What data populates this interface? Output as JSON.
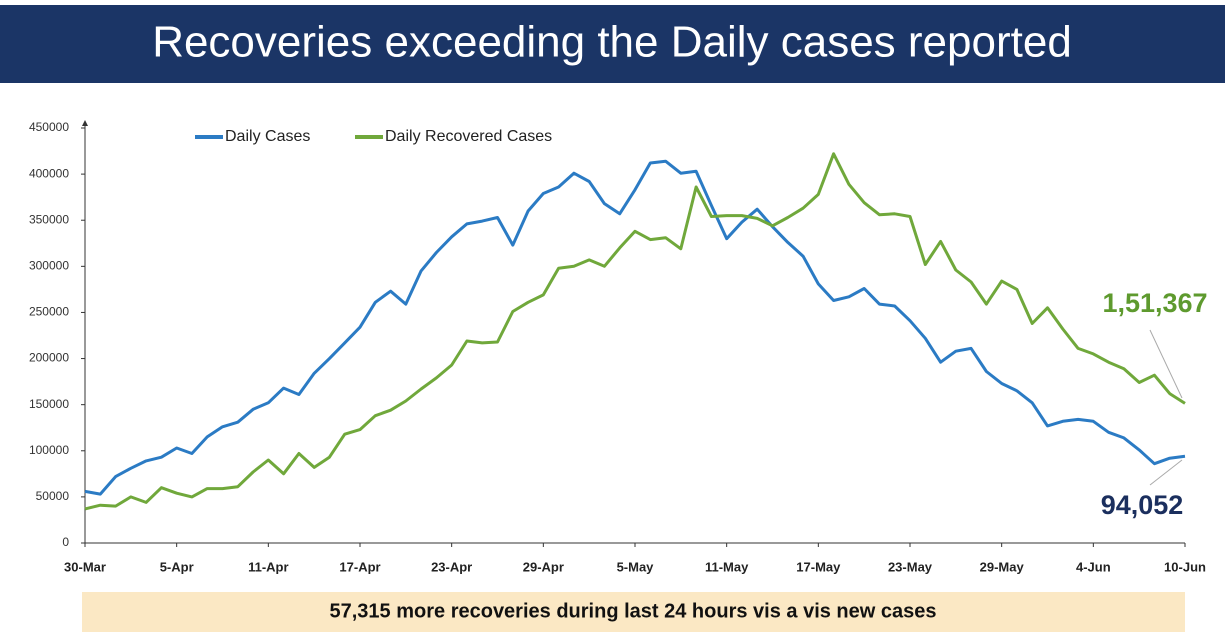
{
  "chart_data": {
    "type": "line",
    "title": "Recoveries exceeding the Daily cases reported",
    "footer": "57,315 more recoveries during last 24 hours vis a vis new cases",
    "annotations": [
      "1,51,367",
      "94,052"
    ],
    "categories": [
      "30-Mar",
      null,
      null,
      null,
      null,
      null,
      "5-Apr",
      null,
      null,
      null,
      null,
      null,
      "11-Apr",
      null,
      null,
      null,
      null,
      null,
      "17-Apr",
      null,
      null,
      null,
      null,
      null,
      "23-Apr",
      null,
      null,
      null,
      null,
      null,
      "29-Apr",
      null,
      null,
      null,
      null,
      null,
      "5-May",
      null,
      null,
      null,
      null,
      null,
      "11-May",
      null,
      null,
      null,
      null,
      null,
      "17-May",
      null,
      null,
      null,
      null,
      null,
      "23-May",
      null,
      null,
      null,
      null,
      null,
      "29-May",
      null,
      null,
      null,
      null,
      null,
      "4-Jun",
      null,
      null,
      null,
      null,
      null,
      "10-Jun"
    ],
    "series": [
      {
        "name": "Daily Cases",
        "color": "#2b7bc4",
        "values": [
          56000,
          53000,
          72000,
          81000,
          89000,
          93000,
          103000,
          97000,
          115000,
          126000,
          131000,
          145000,
          152000,
          168000,
          161000,
          184000,
          200000,
          217000,
          234000,
          261000,
          273000,
          259000,
          295000,
          315000,
          332000,
          346000,
          349000,
          353000,
          323000,
          360000,
          379000,
          386000,
          401000,
          392000,
          368000,
          357000,
          383000,
          412000,
          414000,
          401000,
          403000,
          366000,
          330000,
          348000,
          362000,
          343000,
          326000,
          311000,
          281000,
          263000,
          267000,
          276000,
          259000,
          257000,
          241000,
          222000,
          196000,
          208000,
          211000,
          186000,
          173000,
          165000,
          152000,
          127000,
          132000,
          134000,
          132000,
          120000,
          114000,
          101000,
          86000,
          92000,
          94052
        ]
      },
      {
        "name": "Daily Recovered Cases",
        "color": "#70a83b",
        "values": [
          37000,
          41000,
          40000,
          50000,
          44000,
          60000,
          54000,
          50000,
          59000,
          59000,
          61000,
          77000,
          90000,
          75000,
          97000,
          82000,
          93000,
          118000,
          123000,
          138000,
          144000,
          154000,
          167000,
          179000,
          193000,
          219000,
          217000,
          218000,
          251000,
          261000,
          269000,
          298000,
          300000,
          307000,
          300000,
          320000,
          338000,
          329000,
          331000,
          319000,
          386000,
          354000,
          355000,
          355000,
          352000,
          344000,
          353000,
          363000,
          378000,
          422000,
          389000,
          369000,
          356000,
          357000,
          354000,
          302000,
          327000,
          296000,
          283000,
          259000,
          284000,
          275000,
          238000,
          255000,
          232000,
          211000,
          205000,
          196000,
          189000,
          174000,
          182000,
          162000,
          151367
        ]
      }
    ],
    "ylim": [
      0,
      450000
    ],
    "yticks": [
      0,
      50000,
      100000,
      150000,
      200000,
      250000,
      300000,
      350000,
      400000,
      450000
    ]
  }
}
